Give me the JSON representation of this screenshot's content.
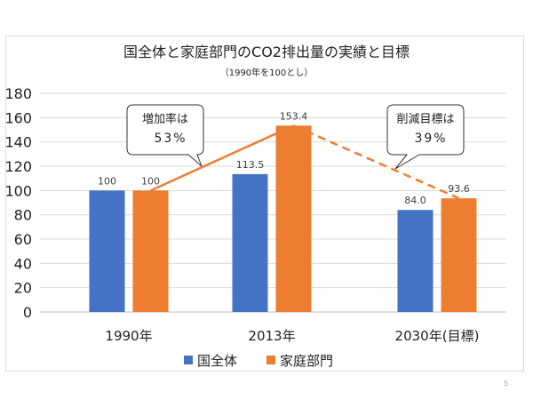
{
  "page": {
    "number": "5"
  },
  "chart_data": {
    "type": "bar",
    "title": "国全体と家庭部門のCO2排出量の実績と目標",
    "subtitle": "（1990年を100とし）",
    "categories": [
      "1990年",
      "2013年",
      "2030年(目標)"
    ],
    "series": [
      {
        "name": "国全体",
        "values": [
          100,
          113.5,
          84.0
        ],
        "labels": [
          "100",
          "113.5",
          "84.0"
        ],
        "color": "#4472C4"
      },
      {
        "name": "家庭部門",
        "values": [
          100,
          153.4,
          93.6
        ],
        "labels": [
          "100",
          "153.4",
          "93.6"
        ],
        "color": "#ED7D31"
      }
    ],
    "ylim": [
      0,
      180
    ],
    "yticks": [
      "0",
      "20",
      "40",
      "60",
      "80",
      "100",
      "120",
      "140",
      "160",
      "180"
    ],
    "grid": true,
    "legend": "bottom",
    "trend_line": {
      "color": "#ED7D31",
      "solid_segment": "1990年-2013年",
      "dashed_segment": "2013年-2030年(目標)"
    },
    "annotations": [
      {
        "text_line1": "増加率は",
        "text_line2": "53%"
      },
      {
        "text_line1": "削減目標は",
        "text_line2": "39%"
      }
    ]
  }
}
